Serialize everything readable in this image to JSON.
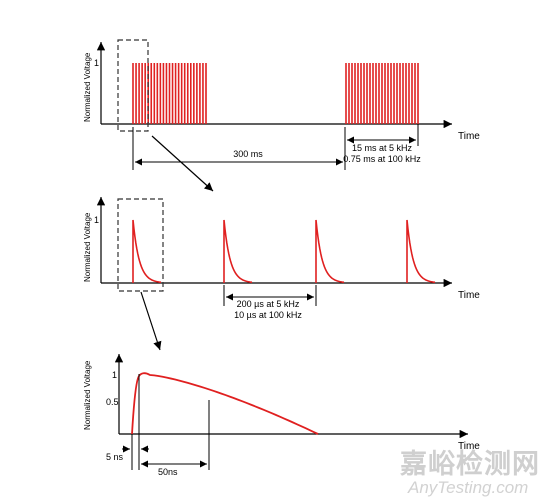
{
  "colors": {
    "pulse": "#e02020",
    "axis": "#000000",
    "watermark": "#cccccc"
  },
  "panel1": {
    "ylabel": "Normalized Voltage",
    "ytick": "1",
    "xlabel": "Time",
    "annotation_period": "300 ms",
    "annotation_burst_line1": "15 ms at 5 kHz",
    "annotation_burst_line2": "0.75 ms at 100 kHz"
  },
  "panel2": {
    "ylabel": "Normalized Voltage",
    "ytick": "1",
    "xlabel": "Time",
    "annotation_line1": "200 µs at 5 kHz",
    "annotation_line2": "10 µs at 100 kHz"
  },
  "panel3": {
    "ylabel": "Normalized Voltage",
    "ytick_top": "1",
    "ytick_mid": "0.5",
    "xlabel": "Time",
    "annotation_rise": "5 ns",
    "annotation_width": "50ns"
  },
  "watermark": {
    "chinese": "嘉峪检测网",
    "english": "AnyTesting.com"
  }
}
